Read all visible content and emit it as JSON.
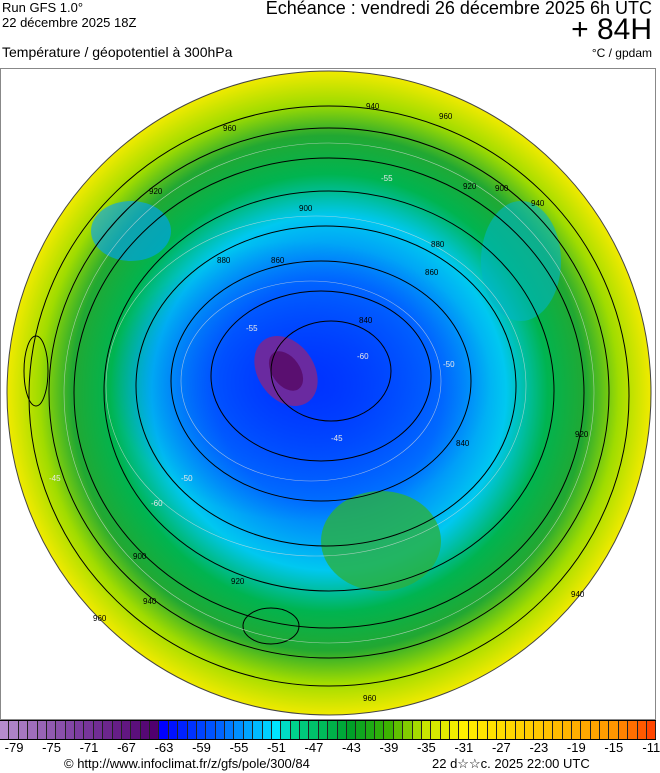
{
  "header": {
    "run": "Run GFS 1.0°",
    "run_date": "22 décembre 2025 18Z",
    "title": "Température / géopotentiel à 300hPa",
    "echeance": "Echéance : vendredi 26 décembre 2025 6h UTC",
    "lead": "+ 84H",
    "units": "°C / gpdam"
  },
  "map": {
    "contour_labels": [
      "960",
      "940",
      "920",
      "900",
      "880",
      "860",
      "840",
      "960",
      "940",
      "920",
      "900",
      "880",
      "860",
      "840",
      "920",
      "940",
      "960",
      "900",
      "920",
      "940",
      "960"
    ],
    "temperature_labels": [
      "-60",
      "-55",
      "-50",
      "-45",
      "-55",
      "-60",
      "-50",
      "-45"
    ]
  },
  "colorbar": {
    "min": -80,
    "max": -10,
    "tick_labels": [
      "-79",
      "-75",
      "-71",
      "-67",
      "-63",
      "-59",
      "-55",
      "-51",
      "-47",
      "-43",
      "-39",
      "-35",
      "-31",
      "-27",
      "-23",
      "-19",
      "-15",
      "-11"
    ],
    "stops": [
      {
        "t": -80,
        "color": "#b48ccc"
      },
      {
        "t": -72,
        "color": "#7c3ca0"
      },
      {
        "t": -64,
        "color": "#50006e"
      },
      {
        "t": -63,
        "color": "#0000ff"
      },
      {
        "t": -57,
        "color": "#0064ff"
      },
      {
        "t": -51,
        "color": "#00e6ff"
      },
      {
        "t": -49,
        "color": "#00d28c"
      },
      {
        "t": -43,
        "color": "#00a028"
      },
      {
        "t": -39,
        "color": "#3cb400"
      },
      {
        "t": -35,
        "color": "#c8e600"
      },
      {
        "t": -31,
        "color": "#fff000"
      },
      {
        "t": -23,
        "color": "#ffc800"
      },
      {
        "t": -15,
        "color": "#ff9600"
      },
      {
        "t": -10,
        "color": "#ff3200"
      }
    ]
  },
  "footer": {
    "copyright": "© http://www.infoclimat.fr/z/gfs/pole/300/84",
    "timestamp": "22 d☆☆c. 2025 22:00 UTC"
  }
}
